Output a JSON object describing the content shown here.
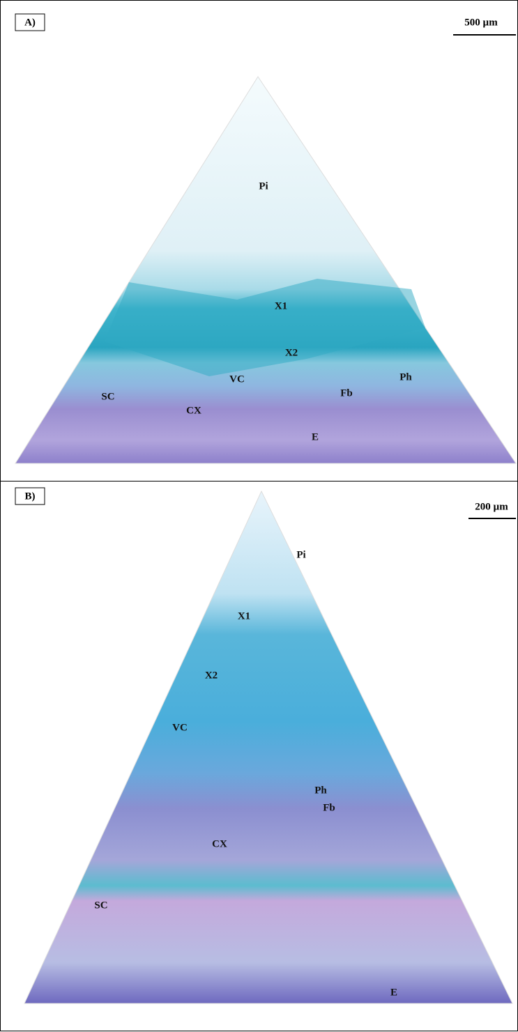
{
  "panels": [
    {
      "label": "A)",
      "scale_bar": "500 µm",
      "tissues": [
        "Pi",
        "X1",
        "X2",
        "VC",
        "Ph",
        "SC",
        "Fb",
        "CX",
        "E"
      ]
    },
    {
      "label": "B)",
      "scale_bar": "200 µm",
      "tissues": [
        "Pi",
        "X1",
        "X2",
        "VC",
        "Ph",
        "Fb",
        "CX",
        "SC",
        "E"
      ]
    }
  ]
}
